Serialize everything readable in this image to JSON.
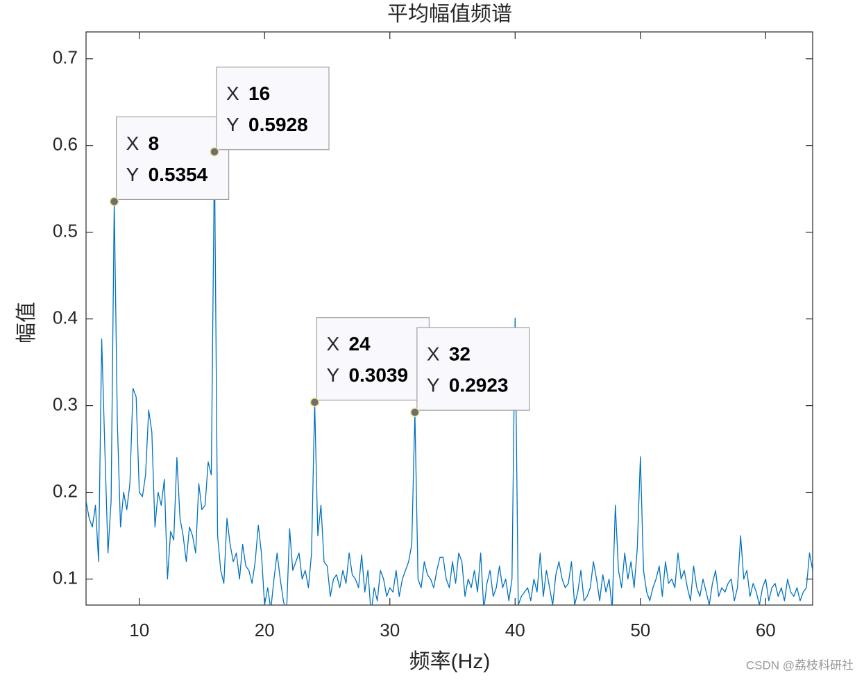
{
  "chart_data": {
    "type": "line",
    "title": "平均幅值频谱",
    "xlabel": "频率(Hz)",
    "ylabel": "幅值",
    "annotation": "CSDN @荔枝科研社",
    "color": "#0072bd",
    "xlim": [
      5.75,
      63.75
    ],
    "ylim": [
      0.07,
      0.731
    ],
    "xticks": [
      10,
      20,
      30,
      40,
      50,
      60
    ],
    "yticks": [
      0.1,
      0.2,
      0.3,
      0.4,
      0.5,
      0.6,
      0.7
    ],
    "x": [
      5.75,
      6,
      6.25,
      6.5,
      6.75,
      7,
      7.25,
      7.5,
      7.75,
      8,
      8.25,
      8.5,
      8.75,
      9,
      9.25,
      9.5,
      9.75,
      10,
      10.25,
      10.5,
      10.75,
      11,
      11.25,
      11.5,
      11.75,
      12,
      12.25,
      12.5,
      12.75,
      13,
      13.25,
      13.5,
      13.75,
      14,
      14.25,
      14.5,
      14.75,
      15,
      15.25,
      15.5,
      15.75,
      16,
      16.25,
      16.5,
      16.75,
      17,
      17.25,
      17.5,
      17.75,
      18,
      18.25,
      18.5,
      18.75,
      19,
      19.25,
      19.5,
      19.75,
      20,
      20.25,
      20.5,
      20.75,
      21,
      21.25,
      21.5,
      21.75,
      22,
      22.25,
      22.5,
      22.75,
      23,
      23.25,
      23.5,
      23.75,
      24,
      24.25,
      24.5,
      24.75,
      25,
      25.25,
      25.5,
      25.75,
      26,
      26.25,
      26.5,
      26.75,
      27,
      27.25,
      27.5,
      27.75,
      28,
      28.25,
      28.5,
      28.75,
      29,
      29.25,
      29.5,
      29.75,
      30,
      30.25,
      30.5,
      30.75,
      31,
      31.25,
      31.5,
      31.75,
      32,
      32.25,
      32.5,
      32.75,
      33,
      33.25,
      33.5,
      33.75,
      34,
      34.25,
      34.5,
      34.75,
      35,
      35.25,
      35.5,
      35.75,
      36,
      36.25,
      36.5,
      36.75,
      37,
      37.25,
      37.5,
      37.75,
      38,
      38.25,
      38.5,
      38.75,
      39,
      39.25,
      39.5,
      39.75,
      40,
      40.25,
      40.5,
      40.75,
      41,
      41.25,
      41.5,
      41.75,
      42,
      42.25,
      42.5,
      42.75,
      43,
      43.25,
      43.5,
      43.75,
      44,
      44.25,
      44.5,
      44.75,
      45,
      45.25,
      45.5,
      45.75,
      46,
      46.25,
      46.5,
      46.75,
      47,
      47.25,
      47.5,
      47.75,
      48,
      48.25,
      48.5,
      48.75,
      49,
      49.25,
      49.5,
      49.75,
      50,
      50.25,
      50.5,
      50.75,
      51,
      51.25,
      51.5,
      51.75,
      52,
      52.25,
      52.5,
      52.75,
      53,
      53.25,
      53.5,
      53.75,
      54,
      54.25,
      54.5,
      54.75,
      55,
      55.25,
      55.5,
      55.75,
      56,
      56.25,
      56.5,
      56.75,
      57,
      57.25,
      57.5,
      57.75,
      58,
      58.25,
      58.5,
      58.75,
      59,
      59.25,
      59.5,
      59.75,
      60,
      60.25,
      60.5,
      60.75,
      61,
      61.25,
      61.5,
      61.75,
      62,
      62.25,
      62.5,
      62.75,
      63,
      63.25,
      63.5,
      63.75
    ],
    "values": [
      0.19,
      0.17,
      0.16,
      0.185,
      0.12,
      0.377,
      0.25,
      0.13,
      0.19,
      0.5354,
      0.28,
      0.16,
      0.2,
      0.18,
      0.21,
      0.32,
      0.31,
      0.2,
      0.195,
      0.22,
      0.295,
      0.27,
      0.16,
      0.2,
      0.185,
      0.215,
      0.1,
      0.155,
      0.145,
      0.24,
      0.17,
      0.15,
      0.12,
      0.16,
      0.15,
      0.13,
      0.21,
      0.18,
      0.185,
      0.235,
      0.22,
      0.5928,
      0.15,
      0.11,
      0.095,
      0.17,
      0.14,
      0.12,
      0.13,
      0.1,
      0.14,
      0.115,
      0.11,
      0.095,
      0.12,
      0.162,
      0.13,
      0.07,
      0.09,
      0.065,
      0.1,
      0.13,
      0.1,
      0.075,
      0.06,
      0.158,
      0.11,
      0.12,
      0.13,
      0.1,
      0.11,
      0.09,
      0.13,
      0.3039,
      0.15,
      0.185,
      0.12,
      0.115,
      0.08,
      0.1,
      0.105,
      0.09,
      0.11,
      0.095,
      0.13,
      0.105,
      0.1,
      0.09,
      0.128,
      0.085,
      0.11,
      0.06,
      0.09,
      0.075,
      0.11,
      0.1,
      0.08,
      0.09,
      0.085,
      0.11,
      0.08,
      0.1,
      0.11,
      0.12,
      0.14,
      0.2923,
      0.1,
      0.09,
      0.12,
      0.105,
      0.1,
      0.09,
      0.11,
      0.125,
      0.125,
      0.1,
      0.09,
      0.12,
      0.095,
      0.13,
      0.12,
      0.08,
      0.1,
      0.09,
      0.11,
      0.085,
      0.13,
      0.065,
      0.095,
      0.11,
      0.08,
      0.09,
      0.115,
      0.09,
      0.1,
      0.075,
      0.1,
      0.401,
      0.07,
      0.08,
      0.085,
      0.09,
      0.075,
      0.1,
      0.085,
      0.13,
      0.08,
      0.11,
      0.09,
      0.07,
      0.105,
      0.12,
      0.1,
      0.09,
      0.095,
      0.12,
      0.07,
      0.085,
      0.11,
      0.075,
      0.08,
      0.09,
      0.12,
      0.1,
      0.075,
      0.105,
      0.085,
      0.1,
      0.065,
      0.185,
      0.11,
      0.09,
      0.13,
      0.1,
      0.12,
      0.09,
      0.135,
      0.241,
      0.11,
      0.085,
      0.075,
      0.09,
      0.1,
      0.115,
      0.08,
      0.12,
      0.095,
      0.1,
      0.09,
      0.13,
      0.1,
      0.11,
      0.09,
      0.075,
      0.115,
      0.09,
      0.08,
      0.1,
      0.085,
      0.07,
      0.095,
      0.11,
      0.08,
      0.09,
      0.085,
      0.095,
      0.1,
      0.075,
      0.09,
      0.15,
      0.1,
      0.11,
      0.08,
      0.095,
      0.085,
      0.07,
      0.09,
      0.1,
      0.075,
      0.09,
      0.095,
      0.08,
      0.09,
      0.075,
      0.1,
      0.085,
      0.08,
      0.09,
      0.075,
      0.085,
      0.09,
      0.13,
      0.11
    ],
    "datatip_labels": [
      "X",
      "Y"
    ],
    "datatips": [
      {
        "x": 8,
        "y": 0.5354
      },
      {
        "x": 16,
        "y": 0.5928
      },
      {
        "x": 24,
        "y": 0.3039
      },
      {
        "x": 32,
        "y": 0.2923
      }
    ]
  }
}
